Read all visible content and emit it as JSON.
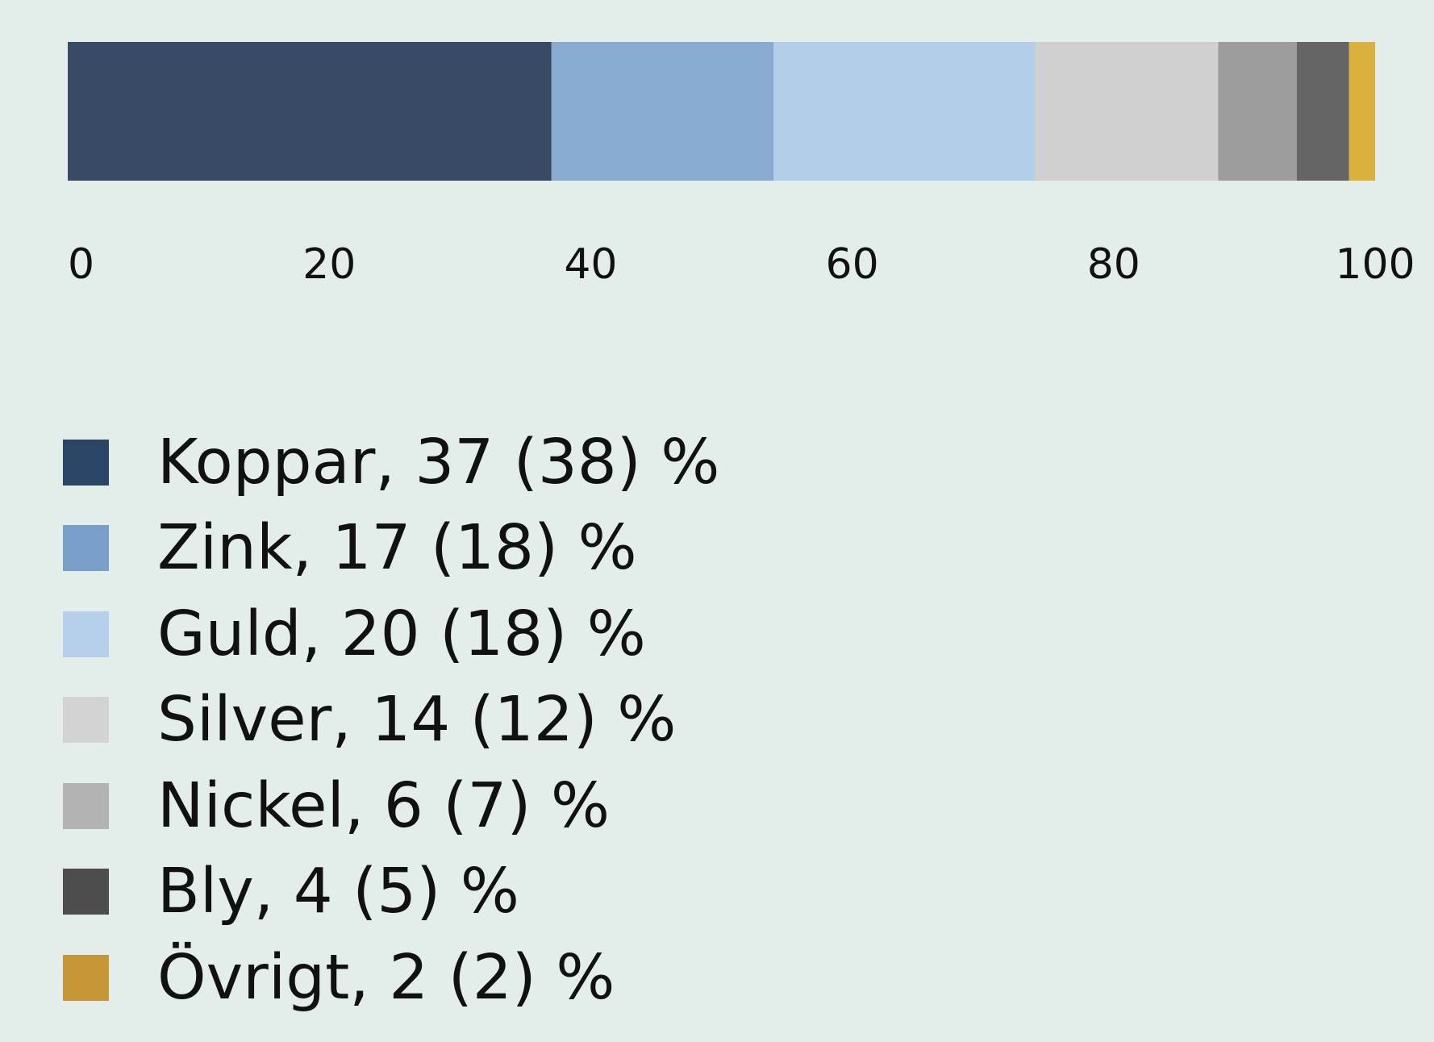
{
  "chart_data": {
    "type": "bar",
    "orientation": "horizontal",
    "stacked": true,
    "xlim": [
      0,
      100
    ],
    "x_ticks": [
      "0",
      "20",
      "40",
      "60",
      "80",
      "100"
    ],
    "grid": false,
    "legend_position": "bottom-left",
    "series": [
      {
        "value": 37,
        "prior": 38,
        "color": "#394a64",
        "legend_color": "#2b4565",
        "label": "Koppar, 37 (38) %"
      },
      {
        "value": 17,
        "prior": 18,
        "color": "#8aabd1",
        "legend_color": "#7a9fc8",
        "label": "Zink, 17 (18) %"
      },
      {
        "value": 20,
        "prior": 18,
        "color": "#b2cee8",
        "legend_color": "#b6cfea",
        "label": "Guld, 20 (18) %"
      },
      {
        "value": 14,
        "prior": 12,
        "color": "#cfd0cf",
        "legend_color": "#d3d3d3",
        "label": "Silver, 14 (12) %"
      },
      {
        "value": 6,
        "prior": 7,
        "color": "#9c9d9c",
        "legend_color": "#b3b3b3",
        "label": "Nickel, 6 (7) %"
      },
      {
        "value": 4,
        "prior": 5,
        "color": "#656565",
        "legend_color": "#4d4d4d",
        "label": "Bly, 4 (5) %"
      },
      {
        "value": 2,
        "prior": 2,
        "color": "#dab13f",
        "legend_color": "#c69737",
        "label": "Övrigt, 2 (2) %"
      }
    ]
  }
}
